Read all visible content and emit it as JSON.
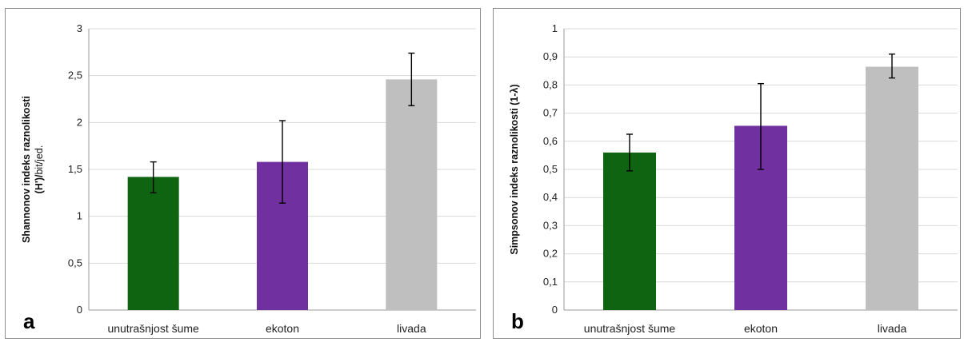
{
  "chart_data": [
    {
      "type": "bar",
      "panel_letter": "a",
      "categories": [
        "unutrašnjost šume",
        "ekoton",
        "livada"
      ],
      "values": [
        1.42,
        1.58,
        2.46
      ],
      "error_bars": [
        [
          1.25,
          1.58
        ],
        [
          1.14,
          2.02
        ],
        [
          2.18,
          2.74
        ]
      ],
      "colors": [
        "#0e6410",
        "#7030a0",
        "#bfbfbf"
      ],
      "ylim": [
        0,
        3
      ],
      "yticks": [
        0,
        0.5,
        1,
        1.5,
        2,
        2.5,
        3
      ],
      "ytick_labels": [
        "0",
        "0,5",
        "1",
        "1,5",
        "2",
        "2,5",
        "3"
      ],
      "ylabel_line1": "Shannonov indeks raznolikosti",
      "ylabel_line2_bold": "(H')/",
      "ylabel_line2_unit": "bit/jed.",
      "grid": true
    },
    {
      "type": "bar",
      "panel_letter": "b",
      "categories": [
        "unutrašnjost šume",
        "ekoton",
        "livada"
      ],
      "values": [
        0.56,
        0.655,
        0.865
      ],
      "error_bars": [
        [
          0.495,
          0.625
        ],
        [
          0.5,
          0.805
        ],
        [
          0.825,
          0.91
        ]
      ],
      "colors": [
        "#0e6410",
        "#7030a0",
        "#bfbfbf"
      ],
      "ylim": [
        0,
        1
      ],
      "yticks": [
        0,
        0.1,
        0.2,
        0.3,
        0.4,
        0.5,
        0.6,
        0.7,
        0.8,
        0.9,
        1
      ],
      "ytick_labels": [
        "0",
        "0,1",
        "0,2",
        "0,3",
        "0,4",
        "0,5",
        "0,6",
        "0,7",
        "0,8",
        "0,9",
        "1"
      ],
      "ylabel_line1": "Simpsonov indeks raznolikosti (1-λ)",
      "grid": true
    }
  ]
}
